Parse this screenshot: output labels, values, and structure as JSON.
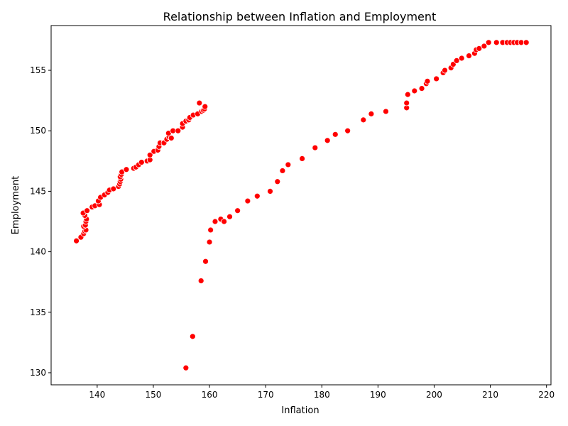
{
  "chart_data": {
    "type": "scatter",
    "title": "Relationship between Inflation and Employment",
    "xlabel": "Inflation",
    "ylabel": "Employment",
    "xlim": [
      131.8,
      220.8
    ],
    "ylim": [
      129.0,
      158.7
    ],
    "xticks": [
      140,
      150,
      160,
      170,
      180,
      190,
      200,
      210,
      220
    ],
    "yticks": [
      130,
      135,
      140,
      145,
      150,
      155
    ],
    "grid": false,
    "legend": "none",
    "marker_color": "#ff0000",
    "points": [
      {
        "x": 136.3,
        "y": 140.9
      },
      {
        "x": 137.1,
        "y": 141.2
      },
      {
        "x": 137.6,
        "y": 141.5
      },
      {
        "x": 137.8,
        "y": 141.7
      },
      {
        "x": 138.0,
        "y": 141.8
      },
      {
        "x": 137.6,
        "y": 142.1
      },
      {
        "x": 137.9,
        "y": 142.2
      },
      {
        "x": 138.0,
        "y": 142.5
      },
      {
        "x": 138.1,
        "y": 142.7
      },
      {
        "x": 137.8,
        "y": 143.0
      },
      {
        "x": 137.5,
        "y": 143.2
      },
      {
        "x": 138.2,
        "y": 143.4
      },
      {
        "x": 139.1,
        "y": 143.7
      },
      {
        "x": 139.6,
        "y": 143.8
      },
      {
        "x": 140.4,
        "y": 143.9
      },
      {
        "x": 140.2,
        "y": 144.2
      },
      {
        "x": 140.6,
        "y": 144.5
      },
      {
        "x": 141.3,
        "y": 144.7
      },
      {
        "x": 141.9,
        "y": 144.9
      },
      {
        "x": 142.2,
        "y": 145.1
      },
      {
        "x": 142.9,
        "y": 145.2
      },
      {
        "x": 143.8,
        "y": 145.4
      },
      {
        "x": 144.0,
        "y": 145.6
      },
      {
        "x": 144.1,
        "y": 145.8
      },
      {
        "x": 144.2,
        "y": 146.0
      },
      {
        "x": 144.1,
        "y": 146.2
      },
      {
        "x": 144.3,
        "y": 146.4
      },
      {
        "x": 144.4,
        "y": 146.6
      },
      {
        "x": 145.2,
        "y": 146.8
      },
      {
        "x": 146.5,
        "y": 146.9
      },
      {
        "x": 146.9,
        "y": 147.0
      },
      {
        "x": 147.4,
        "y": 147.2
      },
      {
        "x": 147.9,
        "y": 147.4
      },
      {
        "x": 148.9,
        "y": 147.5
      },
      {
        "x": 149.4,
        "y": 147.6
      },
      {
        "x": 149.4,
        "y": 148.0
      },
      {
        "x": 150.1,
        "y": 148.3
      },
      {
        "x": 150.8,
        "y": 148.4
      },
      {
        "x": 151.0,
        "y": 148.7
      },
      {
        "x": 151.2,
        "y": 149.0
      },
      {
        "x": 151.9,
        "y": 149.0
      },
      {
        "x": 152.4,
        "y": 149.3
      },
      {
        "x": 152.8,
        "y": 149.5
      },
      {
        "x": 153.2,
        "y": 149.4
      },
      {
        "x": 152.7,
        "y": 149.8
      },
      {
        "x": 153.5,
        "y": 150.0
      },
      {
        "x": 154.4,
        "y": 150.0
      },
      {
        "x": 155.2,
        "y": 150.3
      },
      {
        "x": 155.2,
        "y": 150.6
      },
      {
        "x": 155.8,
        "y": 150.8
      },
      {
        "x": 156.3,
        "y": 150.9
      },
      {
        "x": 156.5,
        "y": 151.1
      },
      {
        "x": 157.1,
        "y": 151.3
      },
      {
        "x": 157.9,
        "y": 151.4
      },
      {
        "x": 158.6,
        "y": 151.6
      },
      {
        "x": 158.9,
        "y": 151.7
      },
      {
        "x": 159.1,
        "y": 151.8
      },
      {
        "x": 159.2,
        "y": 152.0
      },
      {
        "x": 158.2,
        "y": 152.3
      },
      {
        "x": 155.8,
        "y": 130.4
      },
      {
        "x": 157.0,
        "y": 133.0
      },
      {
        "x": 158.5,
        "y": 137.6
      },
      {
        "x": 159.3,
        "y": 139.2
      },
      {
        "x": 160.0,
        "y": 140.8
      },
      {
        "x": 160.2,
        "y": 141.8
      },
      {
        "x": 161.0,
        "y": 142.5
      },
      {
        "x": 162.0,
        "y": 142.7
      },
      {
        "x": 162.6,
        "y": 142.5
      },
      {
        "x": 163.6,
        "y": 142.9
      },
      {
        "x": 165.0,
        "y": 143.4
      },
      {
        "x": 166.8,
        "y": 144.2
      },
      {
        "x": 168.5,
        "y": 144.6
      },
      {
        "x": 170.8,
        "y": 145.0
      },
      {
        "x": 172.1,
        "y": 145.8
      },
      {
        "x": 173.0,
        "y": 146.7
      },
      {
        "x": 174.0,
        "y": 147.2
      },
      {
        "x": 176.5,
        "y": 147.7
      },
      {
        "x": 178.8,
        "y": 148.6
      },
      {
        "x": 181.0,
        "y": 149.2
      },
      {
        "x": 182.4,
        "y": 149.7
      },
      {
        "x": 184.6,
        "y": 150.0
      },
      {
        "x": 187.4,
        "y": 150.9
      },
      {
        "x": 188.8,
        "y": 151.4
      },
      {
        "x": 191.4,
        "y": 151.6
      },
      {
        "x": 195.1,
        "y": 151.9
      },
      {
        "x": 195.1,
        "y": 152.3
      },
      {
        "x": 195.3,
        "y": 153.0
      },
      {
        "x": 196.5,
        "y": 153.3
      },
      {
        "x": 197.8,
        "y": 153.5
      },
      {
        "x": 198.6,
        "y": 153.9
      },
      {
        "x": 198.8,
        "y": 154.1
      },
      {
        "x": 200.4,
        "y": 154.3
      },
      {
        "x": 201.6,
        "y": 154.8
      },
      {
        "x": 201.9,
        "y": 155.0
      },
      {
        "x": 203.0,
        "y": 155.2
      },
      {
        "x": 203.4,
        "y": 155.5
      },
      {
        "x": 204.0,
        "y": 155.8
      },
      {
        "x": 204.9,
        "y": 156.0
      },
      {
        "x": 206.2,
        "y": 156.2
      },
      {
        "x": 207.2,
        "y": 156.4
      },
      {
        "x": 207.5,
        "y": 156.7
      },
      {
        "x": 208.0,
        "y": 156.8
      },
      {
        "x": 208.9,
        "y": 157.0
      },
      {
        "x": 209.7,
        "y": 157.3
      },
      {
        "x": 211.1,
        "y": 157.3
      },
      {
        "x": 212.2,
        "y": 157.3
      },
      {
        "x": 213.0,
        "y": 157.3
      },
      {
        "x": 213.6,
        "y": 157.3
      },
      {
        "x": 214.2,
        "y": 157.3
      },
      {
        "x": 214.8,
        "y": 157.3
      },
      {
        "x": 215.5,
        "y": 157.3
      },
      {
        "x": 216.4,
        "y": 157.3
      }
    ]
  }
}
